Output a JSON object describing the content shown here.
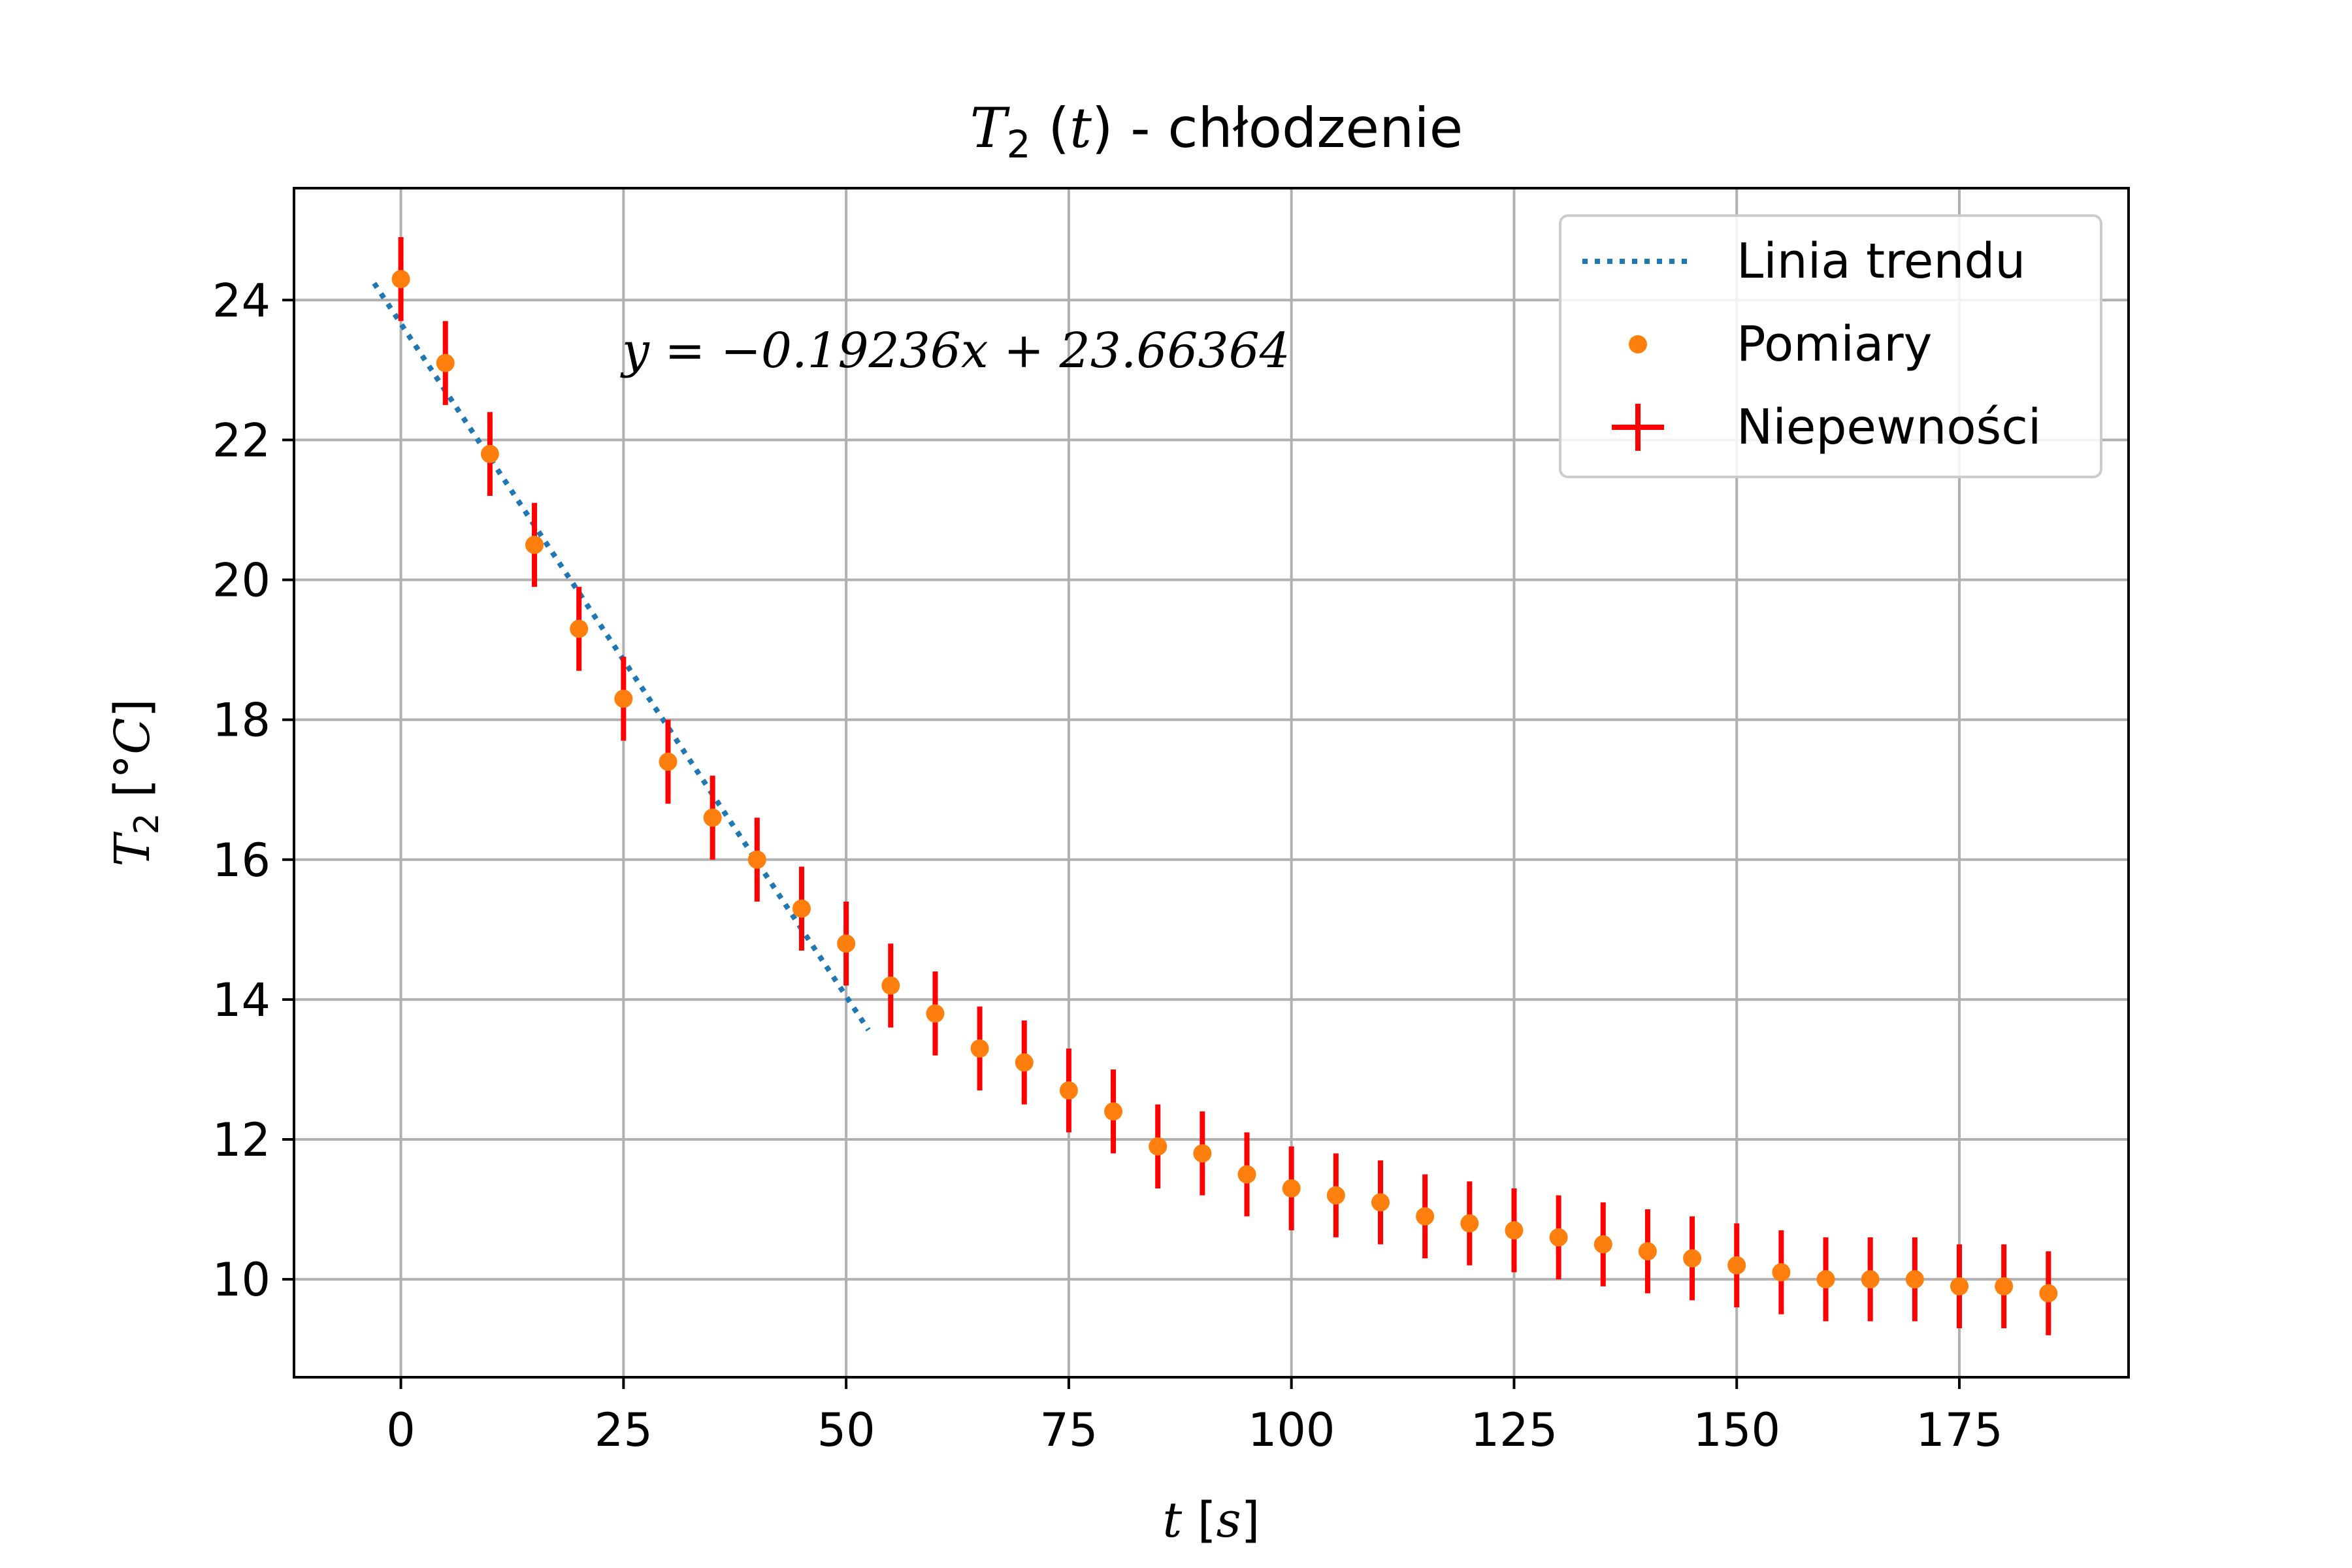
{
  "chart_data": {
    "type": "scatter",
    "title": {
      "symbol": "T",
      "subscript": "2",
      "arg": "t",
      "suffix": " - chłodzenie"
    },
    "xlabel": {
      "var": "t",
      "unit": "s"
    },
    "ylabel": {
      "symbol": "T",
      "subscript": "2",
      "unit": "°C"
    },
    "xlim": [
      -12,
      194
    ],
    "ylim": [
      8.6,
      25.6
    ],
    "xticks": [
      0,
      25,
      50,
      75,
      100,
      125,
      150,
      175
    ],
    "yticks": [
      10,
      12,
      14,
      16,
      18,
      20,
      22,
      24
    ],
    "grid": true,
    "legend_position": "top-right",
    "equation": "y = −0.19236x + 23.66364",
    "trendline": {
      "name": "Linia trendu",
      "slope": -0.19236,
      "intercept": 23.66364,
      "x_range": [
        -3,
        52.5
      ],
      "color": "#1f77b4",
      "style": "dotted"
    },
    "series": [
      {
        "name": "Pomiary",
        "color": "#ff7f0e",
        "x": [
          0,
          5,
          10,
          15,
          20,
          25,
          30,
          35,
          40,
          45,
          50,
          55,
          60,
          65,
          70,
          75,
          80,
          85,
          90,
          95,
          100,
          105,
          110,
          115,
          120,
          125,
          130,
          135,
          140,
          145,
          150,
          155,
          160,
          165,
          170,
          175,
          180,
          185
        ],
        "y": [
          24.3,
          23.1,
          21.8,
          20.5,
          19.3,
          18.3,
          17.4,
          16.6,
          16.0,
          15.3,
          14.8,
          14.2,
          13.8,
          13.3,
          13.1,
          12.7,
          12.4,
          11.9,
          11.8,
          11.5,
          11.3,
          11.2,
          11.1,
          10.9,
          10.8,
          10.7,
          10.6,
          10.5,
          10.4,
          10.3,
          10.2,
          10.1,
          10.0,
          10.0,
          10.0,
          9.9,
          9.9,
          9.8
        ]
      }
    ],
    "errorbars": {
      "name": "Niepewności",
      "yerr": 0.6,
      "color": "#ff0000"
    }
  }
}
